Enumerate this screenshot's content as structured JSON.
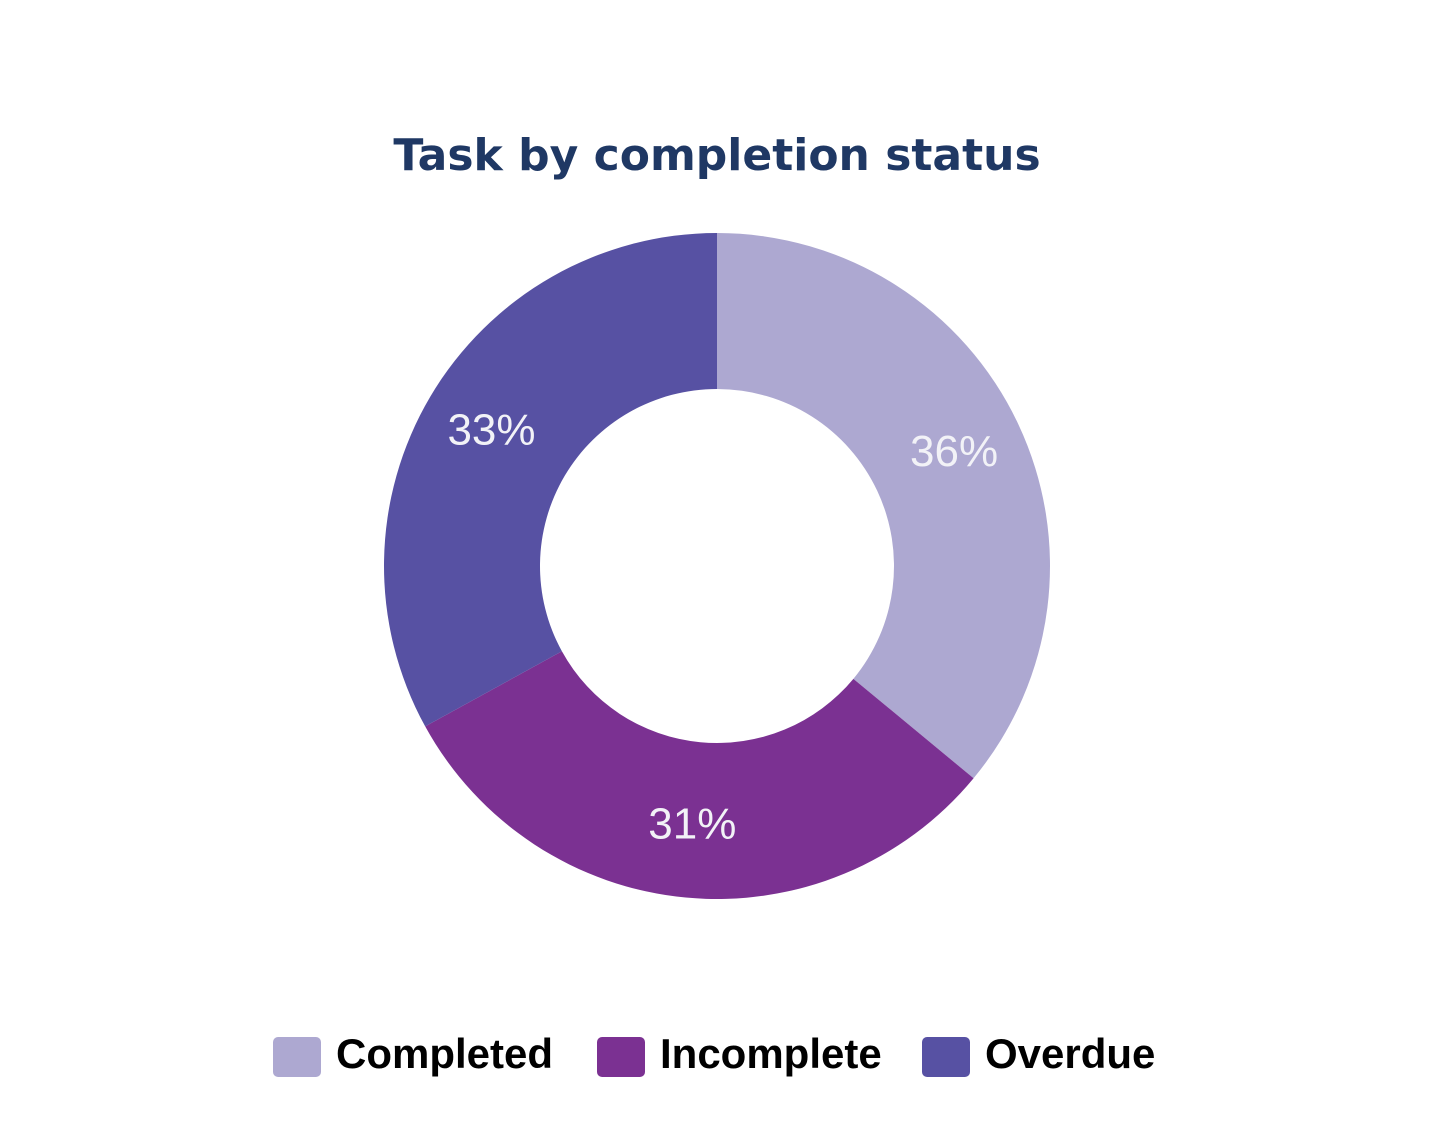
{
  "chart_data": {
    "type": "donut",
    "title": "Task by completion status",
    "categories": [
      "Completed",
      "Incomplete",
      "Overdue"
    ],
    "values": [
      36,
      31,
      33
    ],
    "value_labels": [
      "36%",
      "31%",
      "33%"
    ],
    "colors": [
      "#ada8d1",
      "#7b3192",
      "#5751a3"
    ],
    "legend": "bottom"
  }
}
